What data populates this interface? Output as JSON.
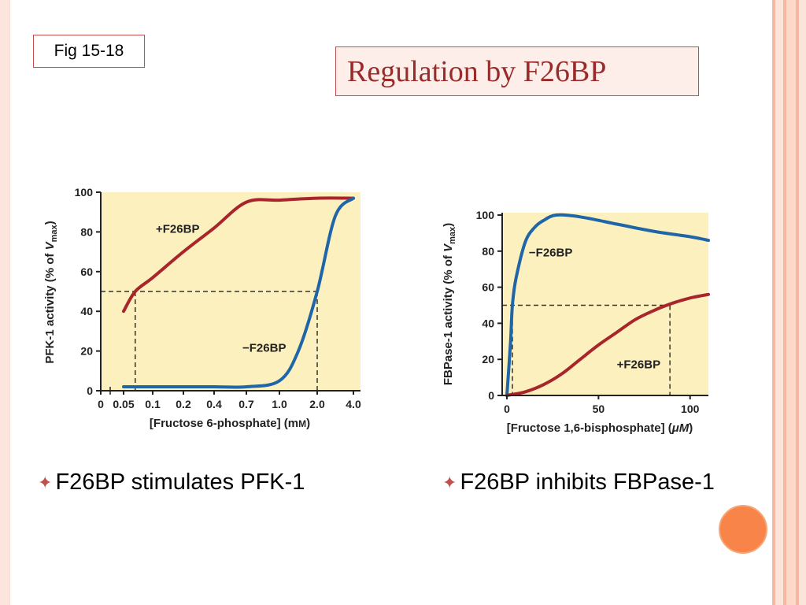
{
  "slide": {
    "fig_label": "Fig 15-18",
    "title": "Regulation by F26BP",
    "bullets": [
      "F26BP stimulates PFK-1",
      "F26BP inhibits FBPase-1"
    ]
  },
  "colors": {
    "plus_curve": "#a8262b",
    "minus_curve": "#1f66a8",
    "plot_bg": "#fdf0bf",
    "accent": "#c0504d"
  },
  "chart_data": [
    {
      "type": "line",
      "ylabel_prefix": "PFK-1 activity (% of ",
      "ylabel_v": "V",
      "ylabel_sub": "max",
      "ylabel_suffix": ")",
      "xlabel_main": "[Fructose 6-phosphate] (m",
      "xlabel_unit": "M",
      "xlabel_close": ")",
      "xtick_labels": [
        "0",
        "0.05",
        "0.1",
        "0.2",
        "0.4",
        "0.7",
        "1.0",
        "2.0",
        "4.0"
      ],
      "yticks": [
        0,
        20,
        40,
        60,
        80,
        100
      ],
      "ylim": [
        0,
        100
      ],
      "reference_level": 50,
      "series": [
        {
          "name": "+F26BP",
          "color_key": "plus_curve",
          "points": [
            [
              0.05,
              40
            ],
            [
              0.07,
              50
            ],
            [
              0.1,
              57
            ],
            [
              0.2,
              70
            ],
            [
              0.4,
              82
            ],
            [
              0.7,
              95
            ],
            [
              1.0,
              96
            ],
            [
              2.0,
              97
            ],
            [
              4.0,
              97
            ]
          ],
          "half_max_x": 0.07
        },
        {
          "name": "−F26BP",
          "color_key": "minus_curve",
          "points": [
            [
              0.05,
              2
            ],
            [
              0.1,
              2
            ],
            [
              0.2,
              2
            ],
            [
              0.4,
              2
            ],
            [
              0.7,
              2
            ],
            [
              1.0,
              5
            ],
            [
              1.5,
              20
            ],
            [
              2.0,
              50
            ],
            [
              3.0,
              88
            ],
            [
              4.0,
              97
            ]
          ],
          "half_max_x": 2.0
        }
      ]
    },
    {
      "type": "line",
      "ylabel_prefix": "FBPase-1 activity (% of ",
      "ylabel_v": "V",
      "ylabel_sub": "max",
      "ylabel_suffix": ")",
      "xlabel_main": "[Fructose 1,6-bisphosphate] (",
      "xlabel_unit": "μM",
      "xlabel_close": ")",
      "xtick_labels": [
        "0",
        "50",
        "100"
      ],
      "xticks": [
        0,
        50,
        100
      ],
      "yticks": [
        0,
        20,
        40,
        60,
        80,
        100
      ],
      "xlim": [
        0,
        110
      ],
      "ylim": [
        0,
        100
      ],
      "reference_level": 50,
      "series": [
        {
          "name": "−F26BP",
          "color_key": "minus_curve",
          "points": [
            [
              0,
              0
            ],
            [
              2,
              30
            ],
            [
              3,
              50
            ],
            [
              5,
              65
            ],
            [
              10,
              85
            ],
            [
              15,
              93
            ],
            [
              20,
              97
            ],
            [
              27,
              100
            ],
            [
              40,
              99
            ],
            [
              60,
              95
            ],
            [
              80,
              91
            ],
            [
              100,
              88
            ],
            [
              110,
              86
            ]
          ],
          "half_max_x": 3
        },
        {
          "name": "+F26BP",
          "color_key": "plus_curve",
          "points": [
            [
              0,
              0
            ],
            [
              10,
              2
            ],
            [
              20,
              6
            ],
            [
              30,
              12
            ],
            [
              40,
              20
            ],
            [
              50,
              28
            ],
            [
              60,
              35
            ],
            [
              70,
              42
            ],
            [
              80,
              47
            ],
            [
              90,
              51
            ],
            [
              100,
              54
            ],
            [
              110,
              56
            ]
          ],
          "half_max_x": 89
        }
      ]
    }
  ]
}
